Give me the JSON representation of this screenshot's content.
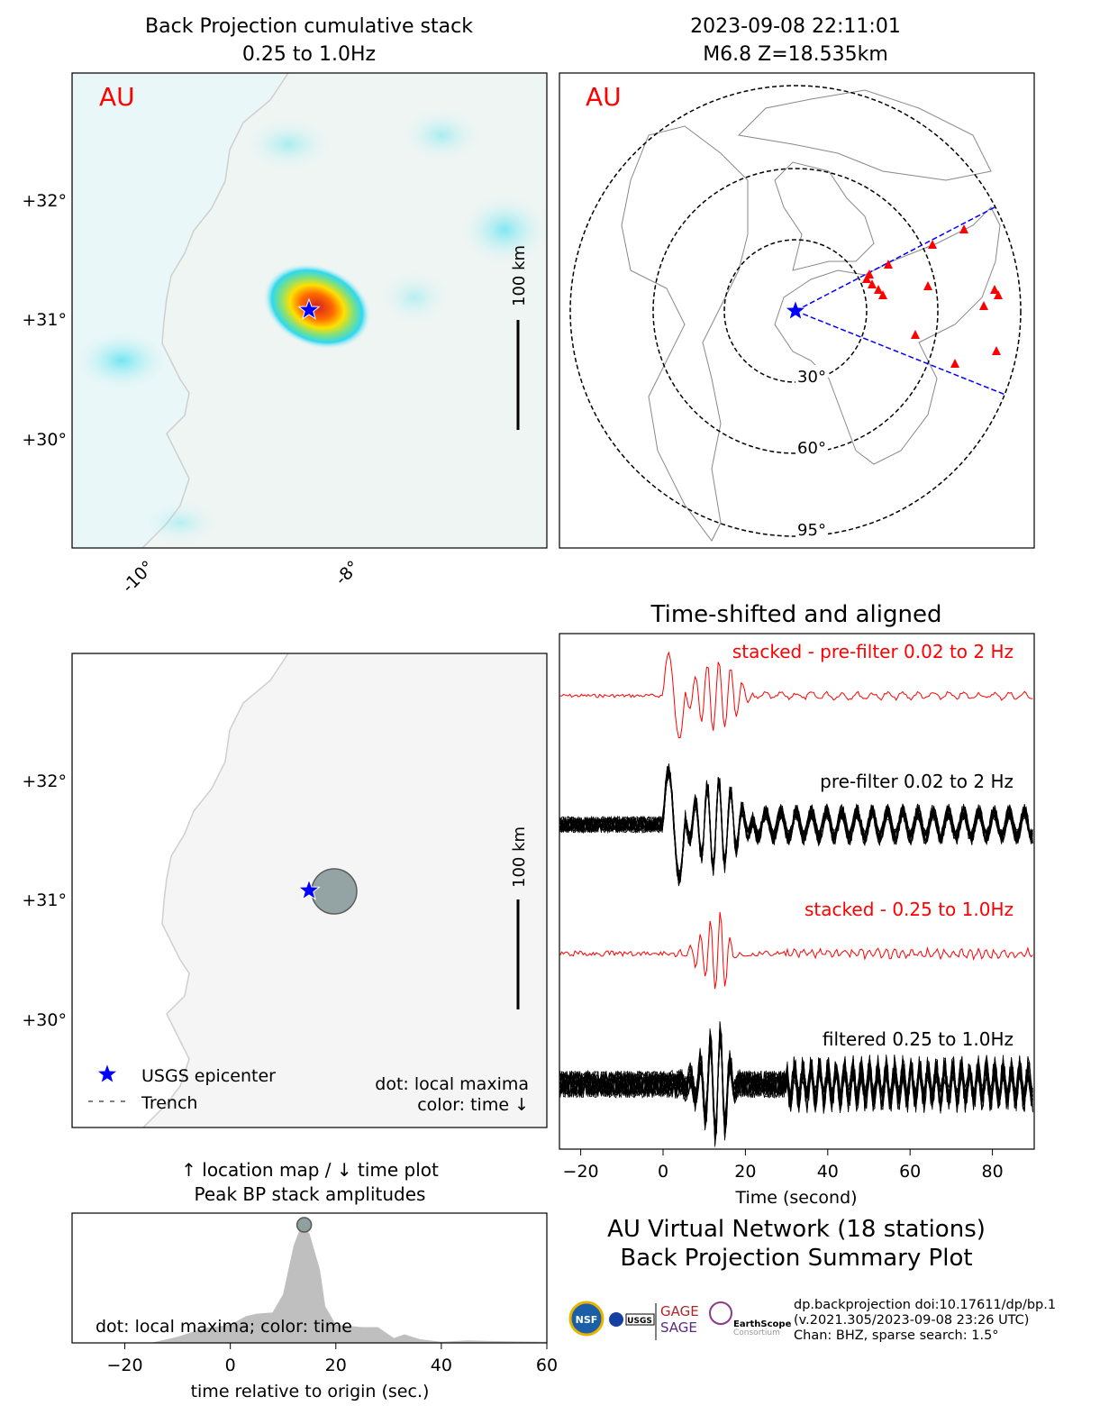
{
  "panel_a": {
    "title_line1": "Back Projection cumulative stack",
    "title_line2": "0.25 to 1.0Hz",
    "network_label": "AU",
    "scale_label": "100 km",
    "lat_ticks": [
      "+32°",
      "+31°",
      "+30°"
    ],
    "lon_ticks": [
      "-10°",
      "-8°"
    ]
  },
  "panel_b": {
    "title_line1": "2023-09-08 22:11:01",
    "title_line2": "M6.8 Z=18.535km",
    "network_label": "AU",
    "ring_labels": [
      "30°",
      "60°",
      "95°"
    ]
  },
  "panel_c": {
    "scale_label": "100 km",
    "lat_ticks": [
      "+32°",
      "+31°",
      "+30°"
    ],
    "legend_epicenter": "USGS epicenter",
    "legend_trench": "Trench",
    "note_line1": "dot: local maxima",
    "note_line2": "color: time ↓"
  },
  "panel_d": {
    "title": "Time-shifted and aligned",
    "trace_labels": [
      "stacked - pre-filter 0.02 to 2 Hz",
      "pre-filter 0.02 to 2 Hz",
      "stacked - 0.25 to 1.0Hz",
      "filtered 0.25 to 1.0Hz"
    ],
    "xlabel": "Time (second)",
    "xticks": [
      "−20",
      "0",
      "20",
      "40",
      "60",
      "80"
    ]
  },
  "panel_e": {
    "title_line1": "↑ location map / ↓ time plot",
    "title_line2": "Peak BP stack amplitudes",
    "note": "dot: local maxima; color: time",
    "xlabel": "time relative to origin (sec.)",
    "xticks": [
      "−20",
      "0",
      "20",
      "40",
      "60"
    ]
  },
  "summary": {
    "line1": "AU Virtual Network (18 stations)",
    "line2": "Back Projection Summary Plot"
  },
  "credits": {
    "line1": "dp.backprojection doi:10.17611/dp/bp.1",
    "line2": "(v.2021.305/2023-09-08 23:26 UTC)",
    "line3": "Chan: BHZ, sparse search: 1.5°",
    "logos": [
      "NSF",
      "NASA",
      "USGS",
      "GAGE",
      "SAGE",
      "EarthScope",
      "Consortium"
    ]
  },
  "colors": {
    "stack_trace": "#ff0000",
    "trace": "#000000",
    "epicenter": "#0000ff",
    "stations": "#ff0000",
    "network_label": "#ff0000",
    "peak_fill": "#bfbfbf",
    "maxima_dot": "#8fa0a0"
  },
  "chart_data": [
    {
      "type": "heatmap",
      "xlim": [
        -10.75,
        -6.1
      ],
      "ylim": [
        29.08,
        33.06
      ],
      "epicenter": {
        "lon": -8.43,
        "lat": 31.08
      },
      "peak": {
        "lon": -8.25,
        "lat": 31.1
      }
    },
    {
      "type": "scatter",
      "epicenter": {
        "lon": -8.43,
        "lat": 31.08
      },
      "local_maxima": [
        {
          "lon": -8.2,
          "lat": 31.05
        }
      ]
    },
    {
      "type": "line",
      "xlim": [
        -25,
        90
      ],
      "x_ticks": [
        -20,
        0,
        20,
        40,
        60,
        80
      ]
    },
    {
      "type": "area",
      "xlim": [
        -30,
        60
      ],
      "x_ticks": [
        -20,
        0,
        20,
        40,
        60
      ],
      "x": [
        -30,
        -15,
        -10,
        -5,
        0,
        3,
        5,
        8,
        10,
        12,
        13.5,
        15,
        17,
        18,
        20,
        25,
        28,
        31,
        33,
        36,
        40,
        45,
        50,
        60
      ],
      "y": [
        0,
        0,
        0.05,
        0.12,
        0.15,
        0.22,
        0.24,
        0.25,
        0.4,
        0.8,
        0.97,
        0.9,
        0.6,
        0.3,
        0.15,
        0.13,
        0.13,
        0.04,
        0.07,
        0.03,
        0.01,
        0.02,
        0.015,
        0.01
      ],
      "local_maxima": [
        {
          "x": 14,
          "y": 0.97
        }
      ]
    }
  ]
}
